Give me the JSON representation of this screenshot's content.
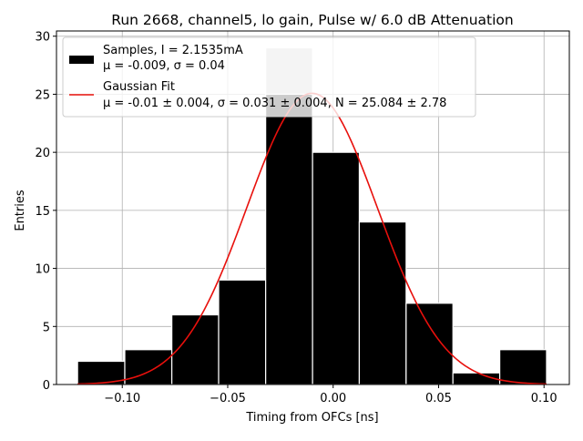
{
  "chart_data": {
    "type": "bar",
    "title": "Run 2668, channel5, lo gain, Pulse w/ 6.0 dB Attenuation",
    "xlabel": "Timing from OFCs [ns]",
    "ylabel": "Entries",
    "xlim": [
      -0.1312,
      0.112
    ],
    "ylim": [
      0,
      30.45
    ],
    "x_ticks": [
      -0.1,
      -0.05,
      0.0,
      0.05,
      0.1
    ],
    "x_tick_labels": [
      "−0.10",
      "−0.05",
      "0.00",
      "0.05",
      "0.10"
    ],
    "y_ticks": [
      0,
      5,
      10,
      15,
      20,
      25,
      30
    ],
    "y_tick_labels": [
      "0",
      "5",
      "10",
      "15",
      "20",
      "25",
      "30"
    ],
    "grid": true,
    "histogram": {
      "name": "Samples",
      "bin_edges": [
        -0.1212,
        -0.0988,
        -0.0765,
        -0.0543,
        -0.032,
        -0.0098,
        0.0124,
        0.0346,
        0.0568,
        0.079,
        0.1012
      ],
      "counts": [
        2,
        3,
        6,
        9,
        29,
        20,
        14,
        7,
        1,
        3
      ],
      "color": "#000000",
      "edge_color": "#ffffff",
      "highlight_bin": 4,
      "highlight_color": "#c8c8c8"
    },
    "fit": {
      "name": "Gaussian Fit",
      "mu": -0.01,
      "sigma": 0.031,
      "N": 25.084,
      "x_range": [
        -0.1212,
        0.1012
      ],
      "color": "#e8100c"
    },
    "legend": {
      "position": "top-left",
      "entries": [
        {
          "kind": "patch",
          "line1": "Samples, I = 2.1535mA",
          "line2": "μ = -0.009, σ = 0.04"
        },
        {
          "kind": "line",
          "line1": "Gaussian Fit",
          "line2": "μ = -0.01 ± 0.004, σ = 0.031 ± 0.004, N = 25.084 ± 2.78"
        }
      ]
    }
  }
}
